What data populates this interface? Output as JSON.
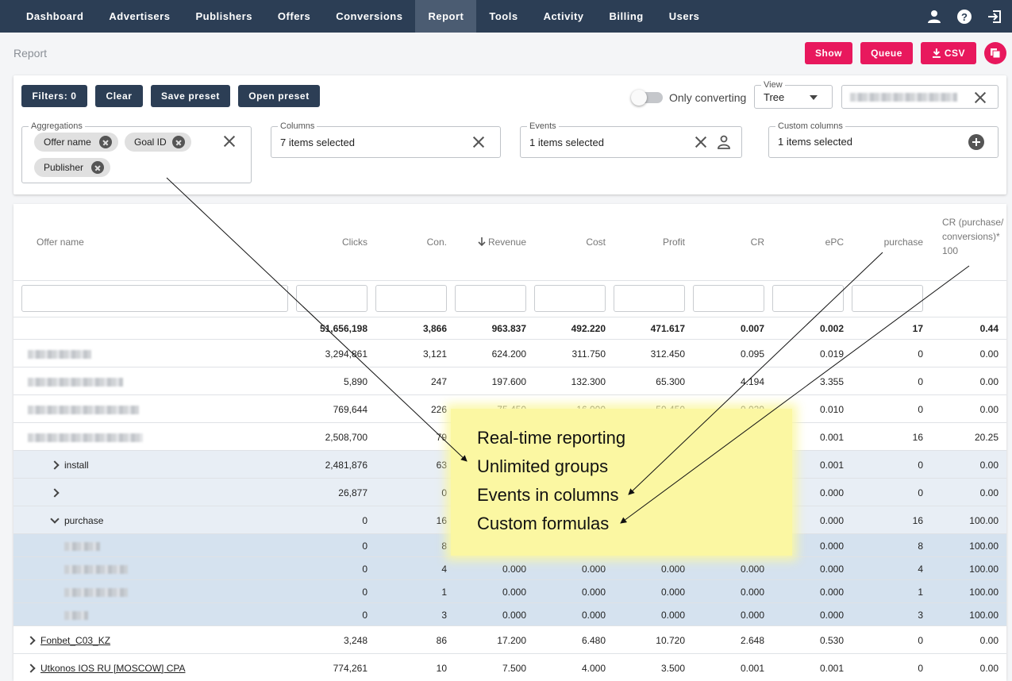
{
  "nav": {
    "items": [
      "Dashboard",
      "Advertisers",
      "Publishers",
      "Offers",
      "Conversions",
      "Report",
      "Tools",
      "Activity",
      "Billing",
      "Users"
    ],
    "active": "Report"
  },
  "page": {
    "title": "Report"
  },
  "actions": {
    "show": "Show",
    "queue": "Queue",
    "csv": "CSV"
  },
  "filters": {
    "filters_label": "Filters: 0",
    "clear": "Clear",
    "save_preset": "Save preset",
    "open_preset": "Open preset",
    "only_converting": "Only converting",
    "view_label": "View",
    "view_value": "Tree",
    "aggregations_label": "Aggregations",
    "aggregations": [
      "Offer name",
      "Goal ID",
      "Publisher"
    ],
    "columns_label": "Columns",
    "columns_value": "7 items selected",
    "events_label": "Events",
    "events_value": "1 items selected",
    "custom_columns_label": "Custom columns",
    "custom_columns_value": "1 items selected"
  },
  "table": {
    "headers": {
      "offer_name": "Offer name",
      "clicks": "Clicks",
      "con": "Con.",
      "revenue": "Revenue",
      "cost": "Cost",
      "profit": "Profit",
      "cr": "CR",
      "epc": "ePC",
      "purchase": "purchase",
      "custom": "CR (purchase/conversions)*100"
    },
    "total": [
      "51,656,198",
      "3,866",
      "963.837",
      "492.220",
      "471.617",
      "0.007",
      "0.002",
      "17",
      "0.44"
    ],
    "rows": [
      {
        "name": "",
        "values": [
          "3,294,861",
          "3,121",
          "624.200",
          "311.750",
          "312.450",
          "0.095",
          "0.019",
          "0",
          "0.00"
        ]
      },
      {
        "name": "",
        "values": [
          "5,890",
          "247",
          "197.600",
          "132.300",
          "65.300",
          "4.194",
          "3.355",
          "0",
          "0.00"
        ]
      },
      {
        "name": "",
        "values": [
          "769,644",
          "226",
          "75.450",
          "16.000",
          "59.450",
          "0.029",
          "0.010",
          "0",
          "0.00"
        ]
      },
      {
        "name": "",
        "values": [
          "2,508,700",
          "79",
          "",
          "",
          "",
          "",
          "0.001",
          "16",
          "20.25"
        ]
      },
      {
        "name": "install",
        "values": [
          "2,481,876",
          "63",
          "",
          "",
          "",
          "",
          "0.001",
          "0",
          "0.00"
        ]
      },
      {
        "name": "",
        "values": [
          "26,877",
          "0",
          "",
          "",
          "",
          "",
          "0.000",
          "0",
          "0.00"
        ]
      },
      {
        "name": "purchase",
        "values": [
          "0",
          "16",
          "",
          "",
          "",
          "",
          "0.000",
          "16",
          "100.00"
        ]
      },
      {
        "name": "",
        "values": [
          "0",
          "8",
          "",
          "",
          "",
          "",
          "0.000",
          "8",
          "100.00"
        ]
      },
      {
        "name": "",
        "values": [
          "0",
          "4",
          "0.000",
          "0.000",
          "0.000",
          "0.000",
          "0.000",
          "4",
          "100.00"
        ]
      },
      {
        "name": "",
        "values": [
          "0",
          "1",
          "0.000",
          "0.000",
          "0.000",
          "0.000",
          "0.000",
          "1",
          "100.00"
        ]
      },
      {
        "name": "",
        "values": [
          "0",
          "3",
          "0.000",
          "0.000",
          "0.000",
          "0.000",
          "0.000",
          "3",
          "100.00"
        ]
      },
      {
        "name": "Fonbet_C03_KZ",
        "values": [
          "3,248",
          "86",
          "17.200",
          "6.480",
          "10.720",
          "2.648",
          "0.530",
          "0",
          "0.00"
        ]
      },
      {
        "name": "Utkonos IOS RU [MOSCOW] CPA",
        "values": [
          "774,261",
          "10",
          "7.500",
          "4.000",
          "3.500",
          "0.001",
          "0.001",
          "0",
          "0.00"
        ]
      }
    ]
  },
  "overlay": {
    "lines": [
      "Real-time reporting",
      "Unlimited groups",
      "Events in columns",
      "Custom formulas"
    ]
  },
  "colors": {
    "nav_bg": "#2c3e55",
    "accent": "#e8185d",
    "overlay": "#fbf7a2",
    "sub_row": "#e8eef5",
    "subsub_row": "#d5e2ef"
  }
}
